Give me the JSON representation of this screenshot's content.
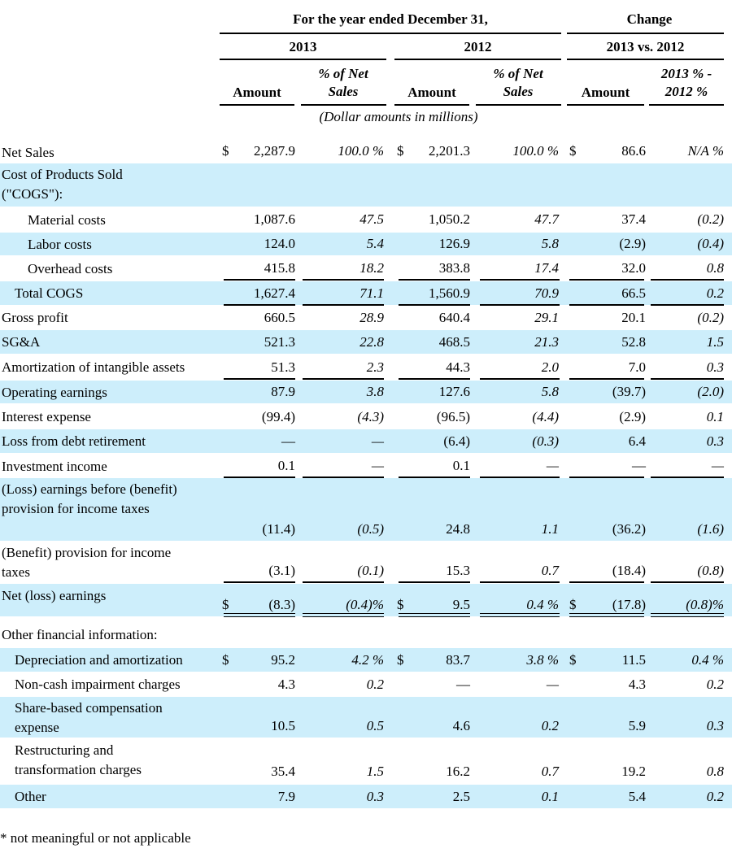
{
  "header": {
    "period": "For the year ended December 31,",
    "change": "Change",
    "year1": "2013",
    "year2": "2012",
    "comparison": "2013 vs. 2012",
    "amount": "Amount",
    "pct_net_sales": "% of Net Sales",
    "pct_diff": "2013 % - 2012 %"
  },
  "units_note": "(Dollar amounts in millions)",
  "rows": [
    {
      "label": "Net Sales",
      "d1": "$",
      "a1": "2,287.9",
      "p1": "100.0 %",
      "d2": "$",
      "a2": "2,201.3",
      "p2": "100.0 %",
      "d3": "$",
      "a3": "86.6",
      "p3": "N/A %"
    },
    {
      "label": "Cost of Products Sold (\"COGS\"):"
    },
    {
      "label": "Material costs",
      "a1": "1,087.6",
      "p1": "47.5",
      "a2": "1,050.2",
      "p2": "47.7",
      "a3": "37.4",
      "p3": "(0.2)"
    },
    {
      "label": "Labor costs",
      "a1": "124.0",
      "p1": "5.4",
      "a2": "126.9",
      "p2": "5.8",
      "a3": "(2.9)",
      "p3": "(0.4)"
    },
    {
      "label": "Overhead costs",
      "a1": "415.8",
      "p1": "18.2",
      "a2": "383.8",
      "p2": "17.4",
      "a3": "32.0",
      "p3": "0.8"
    },
    {
      "label": "Total COGS",
      "a1": "1,627.4",
      "p1": "71.1",
      "a2": "1,560.9",
      "p2": "70.9",
      "a3": "66.5",
      "p3": "0.2"
    },
    {
      "label": "Gross profit",
      "a1": "660.5",
      "p1": "28.9",
      "a2": "640.4",
      "p2": "29.1",
      "a3": "20.1",
      "p3": "(0.2)"
    },
    {
      "label": "SG&A",
      "a1": "521.3",
      "p1": "22.8",
      "a2": "468.5",
      "p2": "21.3",
      "a3": "52.8",
      "p3": "1.5"
    },
    {
      "label": "Amortization of intangible assets",
      "a1": "51.3",
      "p1": "2.3",
      "a2": "44.3",
      "p2": "2.0",
      "a3": "7.0",
      "p3": "0.3"
    },
    {
      "label": "Operating earnings",
      "a1": "87.9",
      "p1": "3.8",
      "a2": "127.6",
      "p2": "5.8",
      "a3": "(39.7)",
      "p3": "(2.0)"
    },
    {
      "label": "Interest expense",
      "a1": "(99.4)",
      "p1": "(4.3)",
      "a2": "(96.5)",
      "p2": "(4.4)",
      "a3": "(2.9)",
      "p3": "0.1"
    },
    {
      "label": "Loss from debt retirement",
      "a1": "—",
      "p1": "—",
      "a2": "(6.4)",
      "p2": "(0.3)",
      "a3": "6.4",
      "p3": "0.3"
    },
    {
      "label": "Investment income",
      "a1": "0.1",
      "p1": "—",
      "a2": "0.1",
      "p2": "—",
      "a3": "—",
      "p3": "—"
    },
    {
      "label": "(Loss) earnings before (benefit) provision for income taxes",
      "a1": "(11.4)",
      "p1": "(0.5)",
      "a2": "24.8",
      "p2": "1.1",
      "a3": "(36.2)",
      "p3": "(1.6)"
    },
    {
      "label": "(Benefit) provision for income taxes",
      "a1": "(3.1)",
      "p1": "(0.1)",
      "a2": "15.3",
      "p2": "0.7",
      "a3": "(18.4)",
      "p3": "(0.8)"
    },
    {
      "label": "Net (loss) earnings",
      "d1": "$",
      "a1": "(8.3)",
      "p1": "(0.4)%",
      "d2": "$",
      "a2": "9.5",
      "p2": "0.4 %",
      "d3": "$",
      "a3": "(17.8)",
      "p3": "(0.8)%"
    },
    {
      "label": "Other financial information:"
    },
    {
      "label": "Depreciation and amortization",
      "d1": "$",
      "a1": "95.2",
      "p1": "4.2 %",
      "d2": "$",
      "a2": "83.7",
      "p2": "3.8 %",
      "d3": "$",
      "a3": "11.5",
      "p3": "0.4 %"
    },
    {
      "label": "Non-cash impairment charges",
      "a1": "4.3",
      "p1": "0.2",
      "a2": "—",
      "p2": "—",
      "a3": "4.3",
      "p3": "0.2"
    },
    {
      "label": "Share-based compensation expense",
      "a1": "10.5",
      "p1": "0.5",
      "a2": "4.6",
      "p2": "0.2",
      "a3": "5.9",
      "p3": "0.3"
    },
    {
      "label": "Restructuring and transformation charges",
      "a1": "35.4",
      "p1": "1.5",
      "a2": "16.2",
      "p2": "0.7",
      "a3": "19.2",
      "p3": "0.8"
    },
    {
      "label": "Other",
      "a1": "7.9",
      "p1": "0.3",
      "a2": "2.5",
      "p2": "0.1",
      "a3": "5.4",
      "p3": "0.2"
    }
  ],
  "footnote": "* not meaningful or not applicable",
  "colors": {
    "band": "#cdeefb",
    "text": "#000000"
  }
}
